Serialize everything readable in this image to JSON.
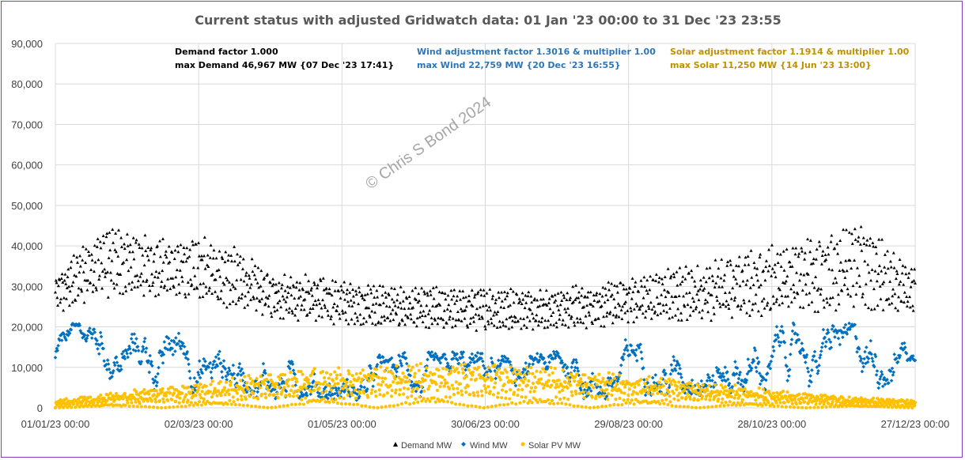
{
  "chart_data": {
    "type": "scatter",
    "title": "Current status with adjusted Gridwatch data: 01 Jan '23 00:00 to 31 Dec '23 23:55",
    "ylim": [
      0,
      90000
    ],
    "y_ticks": [
      "0",
      "10,000",
      "20,000",
      "30,000",
      "40,000",
      "50,000",
      "60,000",
      "70,000",
      "80,000",
      "90,000"
    ],
    "x_ticks": [
      "01/01/23 00:00",
      "02/03/23 00:00",
      "01/05/23 00:00",
      "30/06/23 00:00",
      "29/08/23 00:00",
      "28/10/23 00:00",
      "27/12/23 00:00"
    ],
    "x_range_days": [
      0,
      360
    ],
    "grid": true,
    "legend_position": "bottom",
    "annotations": {
      "demand": [
        "Demand factor 1.000",
        "max Demand 46,967 MW {07 Dec '23 17:41}"
      ],
      "wind": [
        "Wind adjustment factor 1.3016 & multiplier 1.00",
        "max Wind 22,759 MW {20 Dec '23 16:55}"
      ],
      "solar": [
        "Solar adjustment factor 1.1914 & multiplier 1.00",
        "max Solar 11,250 MW {14 Jun '23 13:00}"
      ]
    },
    "watermark": "© Chris S Bond  2024",
    "series": [
      {
        "name": "Demand MW",
        "color": "#000000",
        "marker": "triangle",
        "profile_days": [
          0,
          10,
          20,
          30,
          45,
          60,
          75,
          90,
          110,
          130,
          150,
          170,
          190,
          210,
          230,
          250,
          270,
          290,
          310,
          325,
          340,
          350,
          360
        ],
        "band_low": [
          22000,
          25000,
          27000,
          27000,
          27000,
          25000,
          24000,
          22000,
          21000,
          20000,
          19000,
          19000,
          19000,
          19000,
          20000,
          21000,
          21000,
          22000,
          23000,
          24000,
          24000,
          22000,
          22000
        ],
        "band_high": [
          34000,
          40000,
          46000,
          44000,
          42000,
          43000,
          40000,
          34000,
          33000,
          31000,
          30000,
          30000,
          30000,
          30000,
          31000,
          34000,
          36000,
          39000,
          42000,
          44000,
          47000,
          40000,
          35000
        ]
      },
      {
        "name": "Wind MW",
        "color": "#0070c0",
        "marker": "diamond",
        "profile_days": [
          0,
          5,
          10,
          20,
          30,
          45,
          60,
          75,
          90,
          110,
          130,
          150,
          170,
          190,
          210,
          230,
          250,
          270,
          290,
          310,
          330,
          350,
          355,
          360
        ],
        "band_low": [
          8000,
          14000,
          15000,
          5000,
          5000,
          3000,
          3000,
          3000,
          2000,
          2000,
          1500,
          1000,
          1000,
          1500,
          2000,
          2000,
          3000,
          3000,
          4000,
          4000,
          4000,
          5000,
          12000,
          10000
        ],
        "band_high": [
          16000,
          21000,
          21000,
          20000,
          21000,
          20000,
          19000,
          18000,
          17000,
          14000,
          13000,
          14000,
          14000,
          13000,
          14000,
          16000,
          19000,
          21000,
          21000,
          21000,
          21000,
          22759,
          22000,
          14000
        ]
      },
      {
        "name": "Solar PV MW",
        "color": "#ffc000",
        "marker": "circle",
        "profile_days": [
          0,
          20,
          40,
          60,
          80,
          100,
          120,
          140,
          160,
          180,
          200,
          220,
          240,
          260,
          280,
          300,
          320,
          340,
          360
        ],
        "band_low": [
          0,
          0,
          0,
          0,
          0,
          0,
          0,
          0,
          0,
          0,
          0,
          0,
          0,
          0,
          0,
          0,
          0,
          0,
          0
        ],
        "band_high": [
          2000,
          3500,
          5000,
          6000,
          8000,
          9500,
          10500,
          11000,
          11250,
          11000,
          10500,
          9500,
          8500,
          7000,
          6000,
          4500,
          3500,
          2500,
          2000
        ]
      }
    ]
  }
}
